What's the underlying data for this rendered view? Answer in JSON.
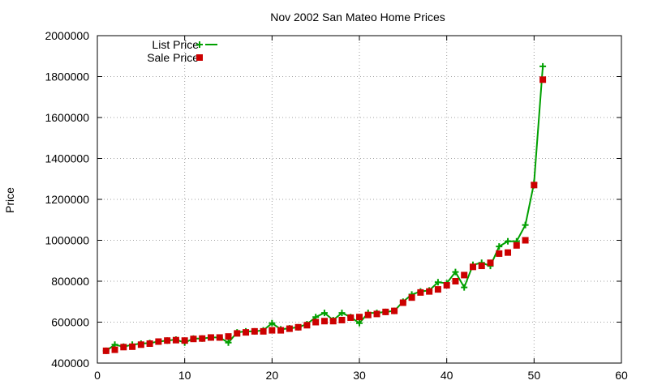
{
  "chart_data": {
    "type": "line",
    "title": "Nov 2002 San Mateo Home Prices",
    "xlabel": "",
    "ylabel": "Price",
    "xlim": [
      0,
      60
    ],
    "ylim": [
      400000,
      2000000
    ],
    "xticks": [
      0,
      10,
      20,
      30,
      40,
      50,
      60
    ],
    "yticks": [
      400000,
      600000,
      800000,
      1000000,
      1200000,
      1400000,
      1600000,
      1800000,
      2000000
    ],
    "grid": true,
    "legend_position": "top-left",
    "series": [
      {
        "name": "List Price",
        "style": "lines+points",
        "marker": "plus",
        "color": "#00a000",
        "x": [
          1,
          2,
          3,
          4,
          5,
          6,
          7,
          8,
          9,
          10,
          11,
          12,
          13,
          14,
          15,
          16,
          17,
          18,
          19,
          20,
          21,
          22,
          23,
          24,
          25,
          26,
          27,
          28,
          29,
          30,
          31,
          32,
          33,
          34,
          35,
          36,
          37,
          38,
          39,
          40,
          41,
          42,
          43,
          44,
          45,
          46,
          47,
          48,
          49,
          50,
          51
        ],
        "y": [
          460000,
          490000,
          480000,
          490000,
          495000,
          498000,
          505000,
          510000,
          515000,
          500000,
          520000,
          520000,
          525000,
          525000,
          500000,
          550000,
          555000,
          555000,
          560000,
          595000,
          565000,
          570000,
          575000,
          590000,
          625000,
          645000,
          610000,
          645000,
          625000,
          595000,
          645000,
          645000,
          650000,
          655000,
          700000,
          735000,
          750000,
          755000,
          795000,
          790000,
          845000,
          770000,
          880000,
          890000,
          875000,
          970000,
          995000,
          995000,
          1075000,
          1280000,
          1850000
        ]
      },
      {
        "name": "Sale Price",
        "style": "points",
        "marker": "square",
        "color": "#cc0000",
        "x": [
          1,
          2,
          3,
          4,
          5,
          6,
          7,
          8,
          9,
          10,
          11,
          12,
          13,
          14,
          15,
          16,
          17,
          18,
          19,
          20,
          21,
          22,
          23,
          24,
          25,
          26,
          27,
          28,
          29,
          30,
          31,
          32,
          33,
          34,
          35,
          36,
          37,
          38,
          39,
          40,
          41,
          42,
          43,
          44,
          45,
          46,
          47,
          48,
          49,
          50,
          51
        ],
        "y": [
          460000,
          465000,
          478000,
          480000,
          490000,
          495000,
          505000,
          510000,
          512000,
          510000,
          518000,
          520000,
          525000,
          525000,
          530000,
          545000,
          550000,
          555000,
          555000,
          560000,
          560000,
          568000,
          575000,
          585000,
          600000,
          605000,
          605000,
          610000,
          622000,
          625000,
          635000,
          640000,
          650000,
          655000,
          695000,
          720000,
          745000,
          750000,
          760000,
          780000,
          800000,
          830000,
          870000,
          875000,
          890000,
          935000,
          940000,
          975000,
          1000000,
          1270000,
          1785000
        ]
      }
    ]
  }
}
